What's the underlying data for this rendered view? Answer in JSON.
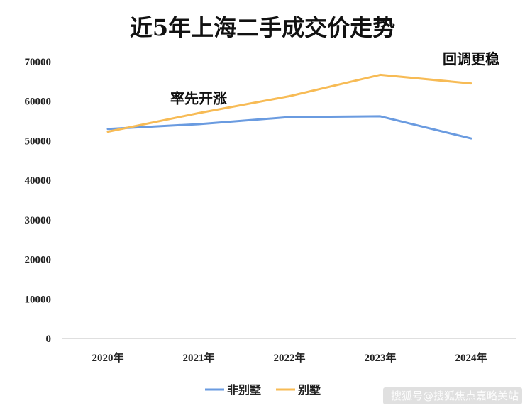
{
  "chart_data": {
    "type": "line",
    "title": "近5年上海二手成交价走势",
    "categories": [
      "2020年",
      "2021年",
      "2022年",
      "2023年",
      "2024年"
    ],
    "ylim": [
      0,
      70000
    ],
    "yticks": [
      0,
      10000,
      20000,
      30000,
      40000,
      50000,
      60000,
      70000
    ],
    "grid": false,
    "legend_position": "bottom",
    "series": [
      {
        "name": "非别墅",
        "color": "#6A9BE0",
        "values": [
          53000,
          54200,
          56000,
          56200,
          50600
        ]
      },
      {
        "name": "别墅",
        "color": "#F7BB55",
        "values": [
          52300,
          57000,
          61300,
          66700,
          64500
        ]
      }
    ],
    "annotations": [
      {
        "text": "率先开涨",
        "category": "2021年",
        "value": 59500
      },
      {
        "text": "回调更稳",
        "category": "2024年",
        "value": 69500
      }
    ]
  },
  "watermark": "搜狐号@搜狐焦点嘉略关站"
}
